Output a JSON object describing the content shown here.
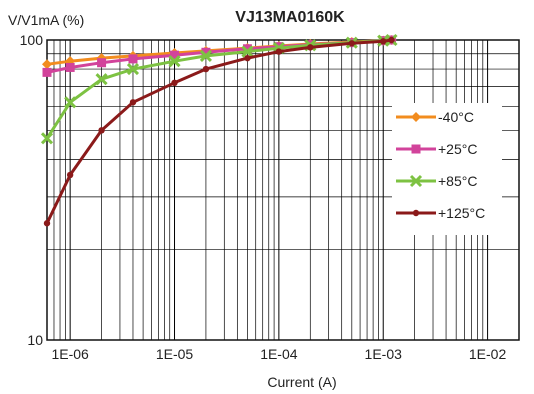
{
  "chart_data": {
    "type": "line",
    "title": "VJ13MA0160K",
    "ylabel": "V/V1mA (%)",
    "xlabel": "Current (A)",
    "x_scale": "log",
    "y_scale": "log",
    "xlim": [
      6e-07,
      0.02
    ],
    "ylim": [
      10,
      100
    ],
    "x_ticks": [
      1e-06,
      1e-05,
      0.0001,
      0.001,
      0.01
    ],
    "x_tick_labels": [
      "1E-06",
      "1E-05",
      "1E-04",
      "1E-03",
      "1E-02"
    ],
    "y_ticks": [
      10,
      100
    ],
    "y_tick_labels": [
      "10",
      "100"
    ],
    "grid": true,
    "legend_position": "right",
    "series": [
      {
        "name": "-40°C",
        "color": "#f28c1e",
        "marker": "diamond",
        "x": [
          6e-07,
          1e-06,
          2e-06,
          4e-06,
          1e-05,
          2e-05,
          5e-05,
          0.0001,
          0.0002,
          0.0005,
          0.001,
          0.0012
        ],
        "y": [
          83,
          85,
          87,
          88.5,
          90.5,
          92,
          94,
          95.5,
          97,
          98.5,
          99.5,
          100
        ]
      },
      {
        "name": "+25°C",
        "color": "#d2439b",
        "marker": "square",
        "x": [
          6e-07,
          1e-06,
          2e-06,
          4e-06,
          1e-05,
          2e-05,
          5e-05,
          0.0001,
          0.0002,
          0.0005,
          0.001,
          0.0012
        ],
        "y": [
          78,
          81,
          84,
          86.5,
          89,
          91,
          93.5,
          95,
          96.5,
          98,
          99.5,
          100
        ]
      },
      {
        "name": "+85°C",
        "color": "#7dc242",
        "marker": "x",
        "x": [
          6e-07,
          1e-06,
          2e-06,
          4e-06,
          1e-05,
          2e-05,
          5e-05,
          0.0001,
          0.0002,
          0.0005,
          0.001,
          0.0012
        ],
        "y": [
          47,
          62,
          74,
          80,
          85,
          88.5,
          91.5,
          94,
          96,
          98,
          99.5,
          100
        ]
      },
      {
        "name": "+125°C",
        "color": "#8b1a1a",
        "marker": "circle",
        "x": [
          6e-07,
          1e-06,
          2e-06,
          4e-06,
          1e-05,
          2e-05,
          5e-05,
          0.0001,
          0.0002,
          0.0005,
          0.001,
          0.0012
        ],
        "y": [
          24.5,
          35.5,
          50,
          62,
          72,
          80,
          87,
          91.5,
          94.5,
          97.5,
          99,
          100
        ]
      }
    ]
  }
}
